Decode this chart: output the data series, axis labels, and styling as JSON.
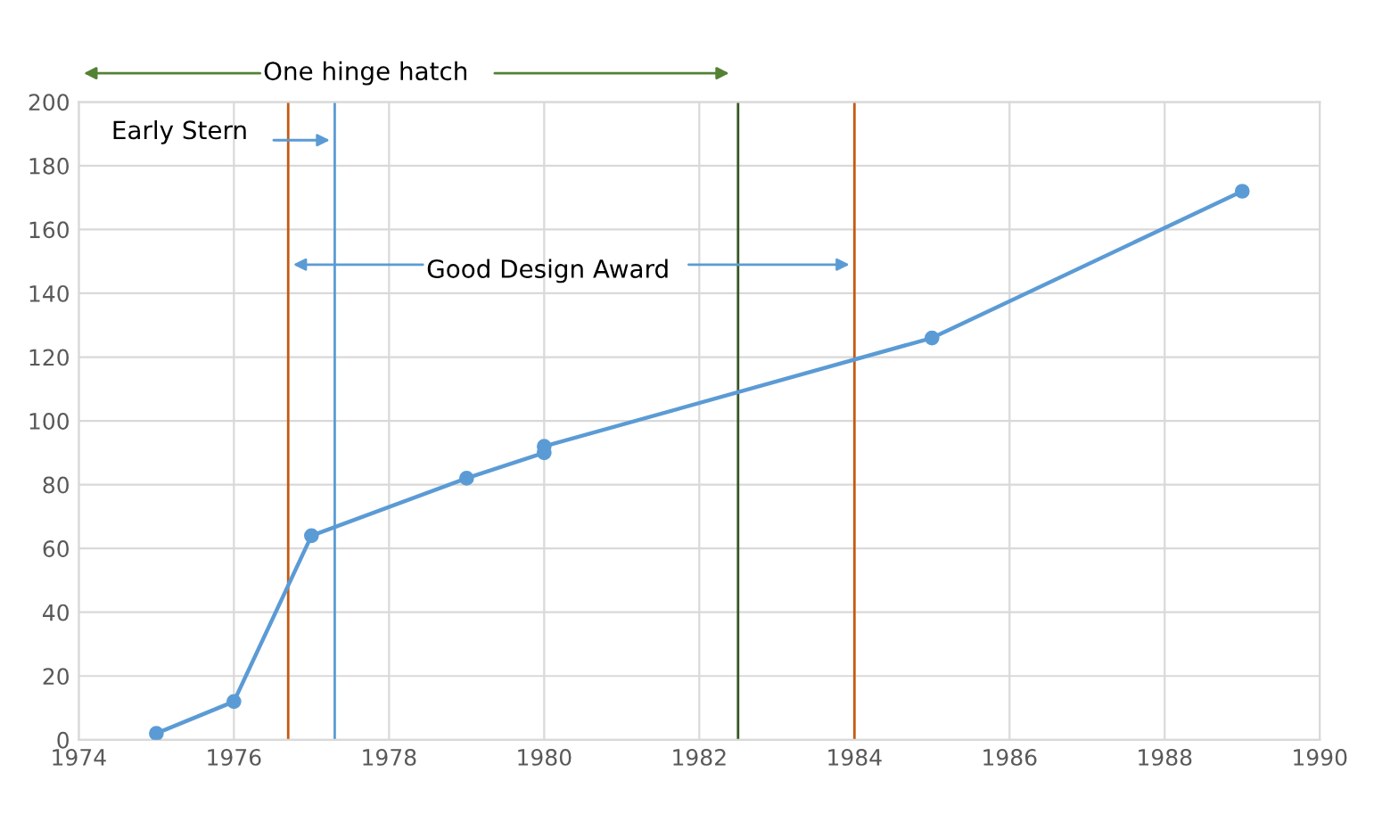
{
  "chart_data": {
    "type": "line",
    "x": [
      1975,
      1976,
      1977,
      1979,
      1980,
      1980,
      1985,
      1989
    ],
    "series": [
      {
        "color": "#5b9bd5",
        "values": [
          2,
          12,
          64,
          82,
          90,
          92,
          126,
          172
        ]
      }
    ],
    "marker": "circle",
    "line_style": "solid",
    "xlim": [
      1974,
      1990
    ],
    "xticks": [
      1974,
      1976,
      1978,
      1980,
      1982,
      1984,
      1986,
      1988,
      1990
    ],
    "ylim": [
      0,
      200
    ],
    "yticks": [
      0,
      20,
      40,
      60,
      80,
      100,
      120,
      140,
      160,
      180,
      200
    ],
    "grid": true,
    "legend": false,
    "ref_lines": [
      {
        "axis": "x",
        "value": 1976.7,
        "color": "#c55a11"
      },
      {
        "axis": "x",
        "value": 1977.3,
        "color": "#5b9bd5"
      },
      {
        "axis": "x",
        "value": 1982.5,
        "color": "#375623"
      },
      {
        "axis": "x",
        "value": 1984.0,
        "color": "#c55a11"
      }
    ],
    "annotations": [
      "One hinge hatch",
      "Early Stern",
      {
        "text": "Good Design Award",
        "x": 1976.7,
        "y": 149
      }
    ]
  }
}
